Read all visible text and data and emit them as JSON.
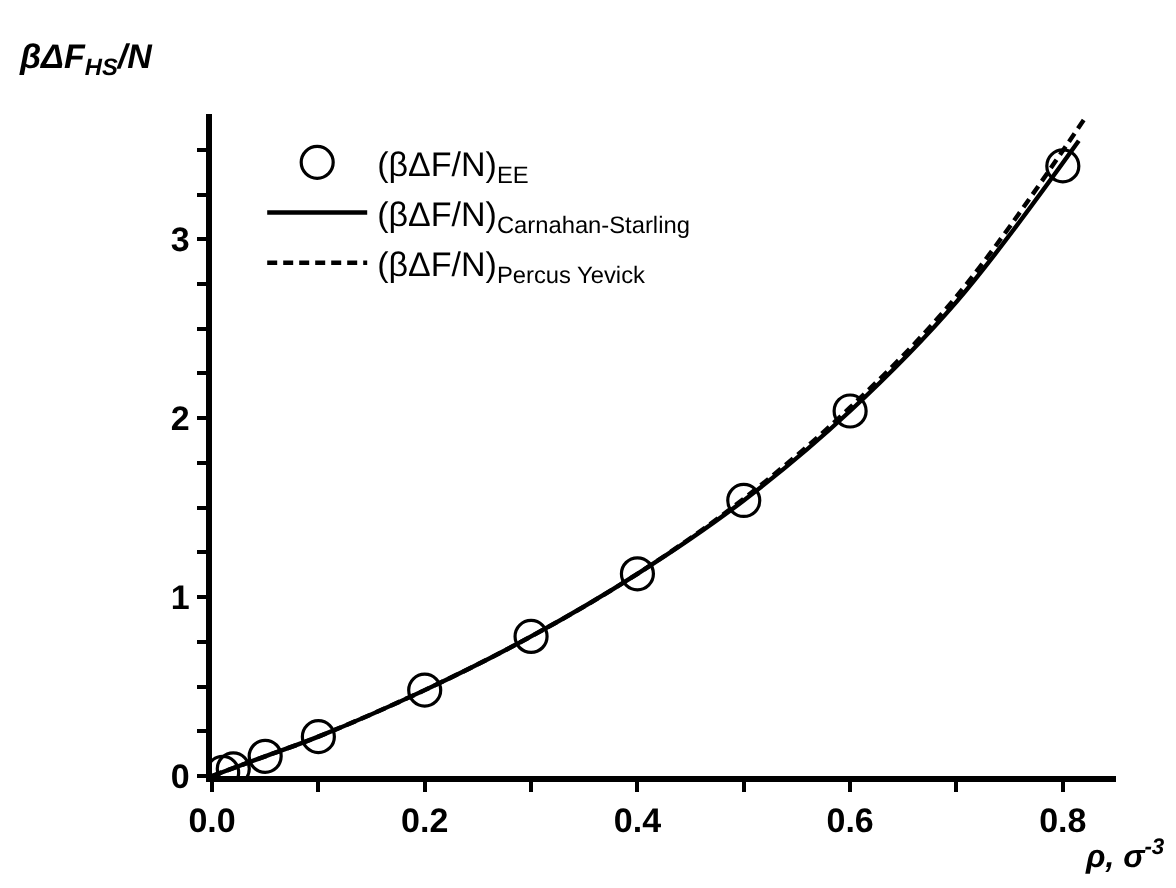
{
  "chart_data": {
    "type": "line",
    "xlabel": "ρ, σ$^{-3}$",
    "ylabel": "βΔF$_{HS}$/N",
    "series": [
      {
        "name": "(βΔF/N)$_{EE}$",
        "type": "scatter",
        "color": "#000000",
        "marker": "circle",
        "x": [
          0.01,
          0.02,
          0.05,
          0.1,
          0.2,
          0.3,
          0.4,
          0.5,
          0.6,
          0.8
        ],
        "values": [
          0.02,
          0.04,
          0.11,
          0.22,
          0.48,
          0.78,
          1.13,
          1.54,
          2.04,
          3.41
        ]
      },
      {
        "name": "(βΔF/N)$_{Carnahan-Starling}$",
        "color": "#000000",
        "line_style": "solid",
        "x": [
          0,
          0.05,
          0.1,
          0.2,
          0.3,
          0.4,
          0.5,
          0.6,
          0.7,
          0.815
        ],
        "values": [
          0,
          0.11,
          0.22,
          0.48,
          0.78,
          1.13,
          1.54,
          2.04,
          2.65,
          3.55
        ]
      },
      {
        "name": "(βΔF/N)$_{Percus Yevick}$",
        "color": "#000000",
        "line_style": "dashed",
        "x": [
          0,
          0.05,
          0.1,
          0.2,
          0.3,
          0.4,
          0.5,
          0.6,
          0.7,
          0.82
        ],
        "values": [
          0,
          0.11,
          0.22,
          0.48,
          0.78,
          1.13,
          1.55,
          2.06,
          2.68,
          3.67
        ]
      }
    ],
    "xlim": [
      0,
      0.85
    ],
    "ylim": [
      0,
      3.7
    ],
    "xticks": [
      "0.0",
      0.2,
      0.4,
      0.6,
      0.8,
      {
        "value": 0.1,
        "label": null
      },
      {
        "value": 0.3,
        "label": null
      },
      {
        "value": 0.5,
        "label": null
      },
      {
        "value": 0.7,
        "label": null
      }
    ],
    "yticks": [
      0,
      1,
      2,
      3,
      {
        "value": 0.25,
        "label": null
      },
      {
        "value": 0.5,
        "label": null
      },
      {
        "value": 0.75,
        "label": null
      },
      {
        "value": 1.25,
        "label": null
      },
      {
        "value": 1.5,
        "label": null
      },
      {
        "value": 1.75,
        "label": null
      },
      {
        "value": 2.25,
        "label": null
      },
      {
        "value": 2.5,
        "label": null
      },
      {
        "value": 2.75,
        "label": null
      },
      {
        "value": 3.25,
        "label": null
      },
      {
        "value": 3.5,
        "label": null
      }
    ],
    "legend": "top left"
  }
}
